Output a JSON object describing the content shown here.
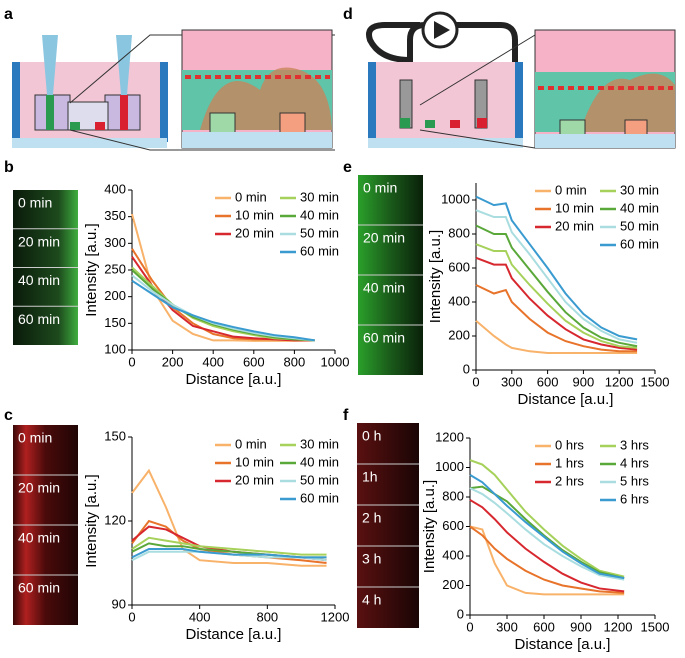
{
  "panel_labels": [
    "a",
    "b",
    "c",
    "d",
    "e",
    "f"
  ],
  "strips": {
    "b": [
      "0 min",
      "20 min",
      "40 min",
      "60 min"
    ],
    "c": [
      "0 min",
      "20 min",
      "40 min",
      "60 min"
    ],
    "e": [
      "0 min",
      "20 min",
      "40 min",
      "60 min"
    ],
    "f": [
      "0 h",
      "1h",
      "2 h",
      "3 h",
      "4 h"
    ]
  },
  "chart_data": [
    {
      "type": "line",
      "xlabel": "Distance [a.u.]",
      "ylabel": "Intensity [a.u.]",
      "xlim": [
        0,
        1000
      ],
      "ylim": [
        100,
        400
      ],
      "xticks": [
        0,
        200,
        400,
        600,
        800,
        1000
      ],
      "yticks": [
        100,
        150,
        200,
        250,
        300,
        350,
        400
      ],
      "x": [
        0,
        100,
        200,
        300,
        400,
        500,
        600,
        700,
        800,
        900
      ],
      "series": [
        {
          "name": "0 min",
          "color": "#f8b26a",
          "values": [
            355,
            215,
            155,
            130,
            118,
            118,
            117,
            117,
            117,
            118
          ]
        },
        {
          "name": "10 min",
          "color": "#e8732a",
          "values": [
            290,
            230,
            180,
            150,
            130,
            122,
            120,
            120,
            119,
            118
          ]
        },
        {
          "name": "20 min",
          "color": "#d7282f",
          "values": [
            275,
            220,
            175,
            145,
            135,
            125,
            122,
            120,
            118,
            118
          ]
        },
        {
          "name": "30 min",
          "color": "#a6d15a",
          "values": [
            255,
            220,
            185,
            160,
            145,
            135,
            128,
            122,
            120,
            118
          ]
        },
        {
          "name": "40 min",
          "color": "#5aa83a",
          "values": [
            250,
            215,
            185,
            162,
            148,
            138,
            130,
            124,
            120,
            118
          ]
        },
        {
          "name": "50 min",
          "color": "#a9dde0",
          "values": [
            240,
            210,
            185,
            165,
            150,
            140,
            132,
            126,
            122,
            118
          ]
        },
        {
          "name": "60 min",
          "color": "#3a9bd0",
          "values": [
            230,
            205,
            180,
            165,
            152,
            143,
            135,
            128,
            124,
            118
          ]
        }
      ]
    },
    {
      "type": "line",
      "xlabel": "Distance [a.u.]",
      "ylabel": "Intensity [a.u.]",
      "xlim": [
        0,
        1200
      ],
      "ylim": [
        90,
        150
      ],
      "xticks": [
        0,
        400,
        800,
        1200
      ],
      "yticks": [
        90,
        120,
        150
      ],
      "x": [
        0,
        100,
        200,
        300,
        400,
        600,
        800,
        1000,
        1150
      ],
      "series": [
        {
          "name": "0 min",
          "color": "#f8b26a",
          "values": [
            130,
            138,
            125,
            110,
            106,
            105,
            105,
            104,
            104
          ]
        },
        {
          "name": "10 min",
          "color": "#e8732a",
          "values": [
            112,
            120,
            118,
            113,
            110,
            108,
            107,
            106,
            105
          ]
        },
        {
          "name": "20 min",
          "color": "#d7282f",
          "values": [
            113,
            118,
            117,
            114,
            111,
            109,
            108,
            107,
            106
          ]
        },
        {
          "name": "30 min",
          "color": "#a6d15a",
          "values": [
            110,
            114,
            113,
            112,
            111,
            110,
            109,
            108,
            108
          ]
        },
        {
          "name": "40 min",
          "color": "#5aa83a",
          "values": [
            109,
            112,
            111,
            111,
            110,
            109,
            108,
            107,
            107
          ]
        },
        {
          "name": "50 min",
          "color": "#a9dde0",
          "values": [
            106,
            109,
            109,
            109,
            109,
            108,
            107,
            107,
            106
          ]
        },
        {
          "name": "60 min",
          "color": "#3a9bd0",
          "values": [
            107,
            110,
            110,
            110,
            109,
            108,
            108,
            107,
            107
          ]
        }
      ]
    },
    {
      "type": "line",
      "xlabel": "Distance [a.u.]",
      "ylabel": "Intensity [a.u.]",
      "xlim": [
        0,
        1500
      ],
      "ylim": [
        0,
        1100
      ],
      "xticks": [
        0,
        300,
        600,
        900,
        1200,
        1500
      ],
      "yticks": [
        0,
        200,
        400,
        600,
        800,
        1000
      ],
      "x": [
        0,
        150,
        250,
        300,
        450,
        600,
        750,
        900,
        1050,
        1200,
        1350
      ],
      "series": [
        {
          "name": "0 min",
          "color": "#f8b26a",
          "values": [
            290,
            200,
            150,
            130,
            110,
            100,
            100,
            100,
            100,
            100,
            100
          ]
        },
        {
          "name": "10 min",
          "color": "#e8732a",
          "values": [
            500,
            450,
            470,
            400,
            300,
            220,
            170,
            140,
            120,
            110,
            110
          ]
        },
        {
          "name": "20 min",
          "color": "#d7282f",
          "values": [
            660,
            620,
            620,
            540,
            420,
            320,
            240,
            180,
            150,
            130,
            120
          ]
        },
        {
          "name": "30 min",
          "color": "#a6d15a",
          "values": [
            740,
            700,
            700,
            620,
            500,
            390,
            290,
            220,
            170,
            140,
            130
          ]
        },
        {
          "name": "40 min",
          "color": "#5aa83a",
          "values": [
            850,
            800,
            800,
            720,
            590,
            460,
            340,
            250,
            190,
            160,
            140
          ]
        },
        {
          "name": "50 min",
          "color": "#a9dde0",
          "values": [
            940,
            900,
            900,
            810,
            680,
            540,
            400,
            300,
            230,
            180,
            160
          ]
        },
        {
          "name": "60 min",
          "color": "#3a9bd0",
          "values": [
            1020,
            970,
            980,
            880,
            740,
            600,
            450,
            330,
            250,
            200,
            180
          ]
        }
      ]
    },
    {
      "type": "line",
      "xlabel": "Distance [a.u.]",
      "ylabel": "Intensity [a.u.]",
      "xlim": [
        0,
        1500
      ],
      "ylim": [
        0,
        1200
      ],
      "xticks": [
        0,
        300,
        600,
        900,
        1200,
        1500
      ],
      "yticks": [
        0,
        200,
        400,
        600,
        800,
        1000,
        1200
      ],
      "x": [
        0,
        100,
        200,
        300,
        450,
        600,
        750,
        900,
        1050,
        1250
      ],
      "series": [
        {
          "name": "0 hrs",
          "color": "#f8b26a",
          "values": [
            600,
            580,
            350,
            200,
            150,
            140,
            140,
            140,
            140,
            140
          ]
        },
        {
          "name": "1 hrs",
          "color": "#e8732a",
          "values": [
            600,
            540,
            450,
            380,
            300,
            240,
            200,
            180,
            160,
            150
          ]
        },
        {
          "name": "2 hrs",
          "color": "#d7282f",
          "values": [
            780,
            730,
            650,
            560,
            450,
            360,
            280,
            220,
            180,
            160
          ]
        },
        {
          "name": "3 hrs",
          "color": "#a6d15a",
          "values": [
            1050,
            1020,
            950,
            850,
            700,
            580,
            470,
            380,
            300,
            260
          ]
        },
        {
          "name": "4 hrs",
          "color": "#5aa83a",
          "values": [
            860,
            870,
            820,
            770,
            650,
            540,
            440,
            360,
            290,
            250
          ]
        },
        {
          "name": "5 hrs",
          "color": "#a9dde0",
          "values": [
            860,
            820,
            760,
            690,
            580,
            480,
            400,
            330,
            270,
            240
          ]
        },
        {
          "name": "6 hrs",
          "color": "#3a9bd0",
          "values": [
            950,
            900,
            820,
            740,
            630,
            530,
            430,
            350,
            280,
            250
          ]
        }
      ]
    }
  ]
}
